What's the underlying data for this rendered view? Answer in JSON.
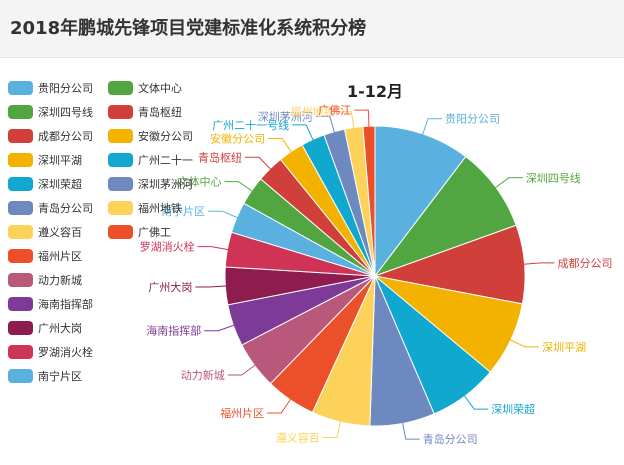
{
  "header": {
    "title": "2018年鹏城先锋项目党建标准化系统积分榜"
  },
  "chart_data": {
    "type": "pie",
    "title": "1-12月",
    "legend_position": "left",
    "slices": [
      {
        "label": "贵阳分公司",
        "value": 10.5,
        "color": "#5ab1e0"
      },
      {
        "label": "深圳四号线",
        "value": 9.3,
        "color": "#52a641"
      },
      {
        "label": "成都分公司",
        "value": 8.6,
        "color": "#d13f3b"
      },
      {
        "label": "深圳平湖",
        "value": 8.2,
        "color": "#f3b100"
      },
      {
        "label": "深圳荣超",
        "value": 7.6,
        "color": "#11a8cf"
      },
      {
        "label": "青岛分公司",
        "value": 7.1,
        "color": "#6e88c0"
      },
      {
        "label": "遵义容百",
        "value": 6.4,
        "color": "#fcd25a"
      },
      {
        "label": "福州片区",
        "value": 5.5,
        "color": "#ec502b"
      },
      {
        "label": "动力新城",
        "value": 5.2,
        "color": "#b9587a"
      },
      {
        "label": "海南指挥部",
        "value": 4.6,
        "color": "#7e3a97"
      },
      {
        "label": "广州大岗",
        "value": 4.1,
        "color": "#8f1c4e"
      },
      {
        "label": "罗湖消火栓",
        "value": 3.8,
        "color": "#cf3355"
      },
      {
        "label": "南宁片区",
        "value": 3.4,
        "color": "#5ab1e0"
      },
      {
        "label": "文体中心",
        "value": 3.2,
        "color": "#52a641"
      },
      {
        "label": "青岛枢纽",
        "value": 3.0,
        "color": "#d13f3b"
      },
      {
        "label": "安徽分公司",
        "value": 2.8,
        "color": "#f3b100"
      },
      {
        "label": "广州二十一号线",
        "value": 2.6,
        "color": "#11a8cf"
      },
      {
        "label": "深圳茅洲河",
        "value": 2.3,
        "color": "#6e88c0"
      },
      {
        "label": "福州地铁",
        "value": 2.0,
        "color": "#fcd25a"
      },
      {
        "label": "广佛江",
        "value": 1.3,
        "color": "#ec502b"
      }
    ]
  },
  "legend_display": [
    {
      "label": "贵阳分公司",
      "color": "#5ab1e0"
    },
    {
      "label": "深圳四号线",
      "color": "#52a641"
    },
    {
      "label": "成都分公司",
      "color": "#d13f3b"
    },
    {
      "label": "深圳平湖",
      "color": "#f3b100"
    },
    {
      "label": "深圳荣超",
      "color": "#11a8cf"
    },
    {
      "label": "青岛分公司",
      "color": "#6e88c0"
    },
    {
      "label": "遵义容百",
      "color": "#fcd25a"
    },
    {
      "label": "福州片区",
      "color": "#ec502b"
    },
    {
      "label": "动力新城",
      "color": "#b9587a"
    },
    {
      "label": "海南指挥部",
      "color": "#7e3a97"
    },
    {
      "label": "广州大岗",
      "color": "#8f1c4e"
    },
    {
      "label": "罗湖消火栓",
      "color": "#cf3355"
    },
    {
      "label": "南宁片区",
      "color": "#5ab1e0"
    },
    {
      "label": "文体中心",
      "color": "#52a641"
    },
    {
      "label": "青岛枢纽",
      "color": "#d13f3b"
    },
    {
      "label": "安徽分公司",
      "color": "#f3b100"
    },
    {
      "label": "广州二十一",
      "color": "#11a8cf"
    },
    {
      "label": "深圳茅洲河",
      "color": "#6e88c0"
    },
    {
      "label": "福州地铁",
      "color": "#fcd25a"
    },
    {
      "label": "广佛工",
      "color": "#ec502b"
    }
  ]
}
